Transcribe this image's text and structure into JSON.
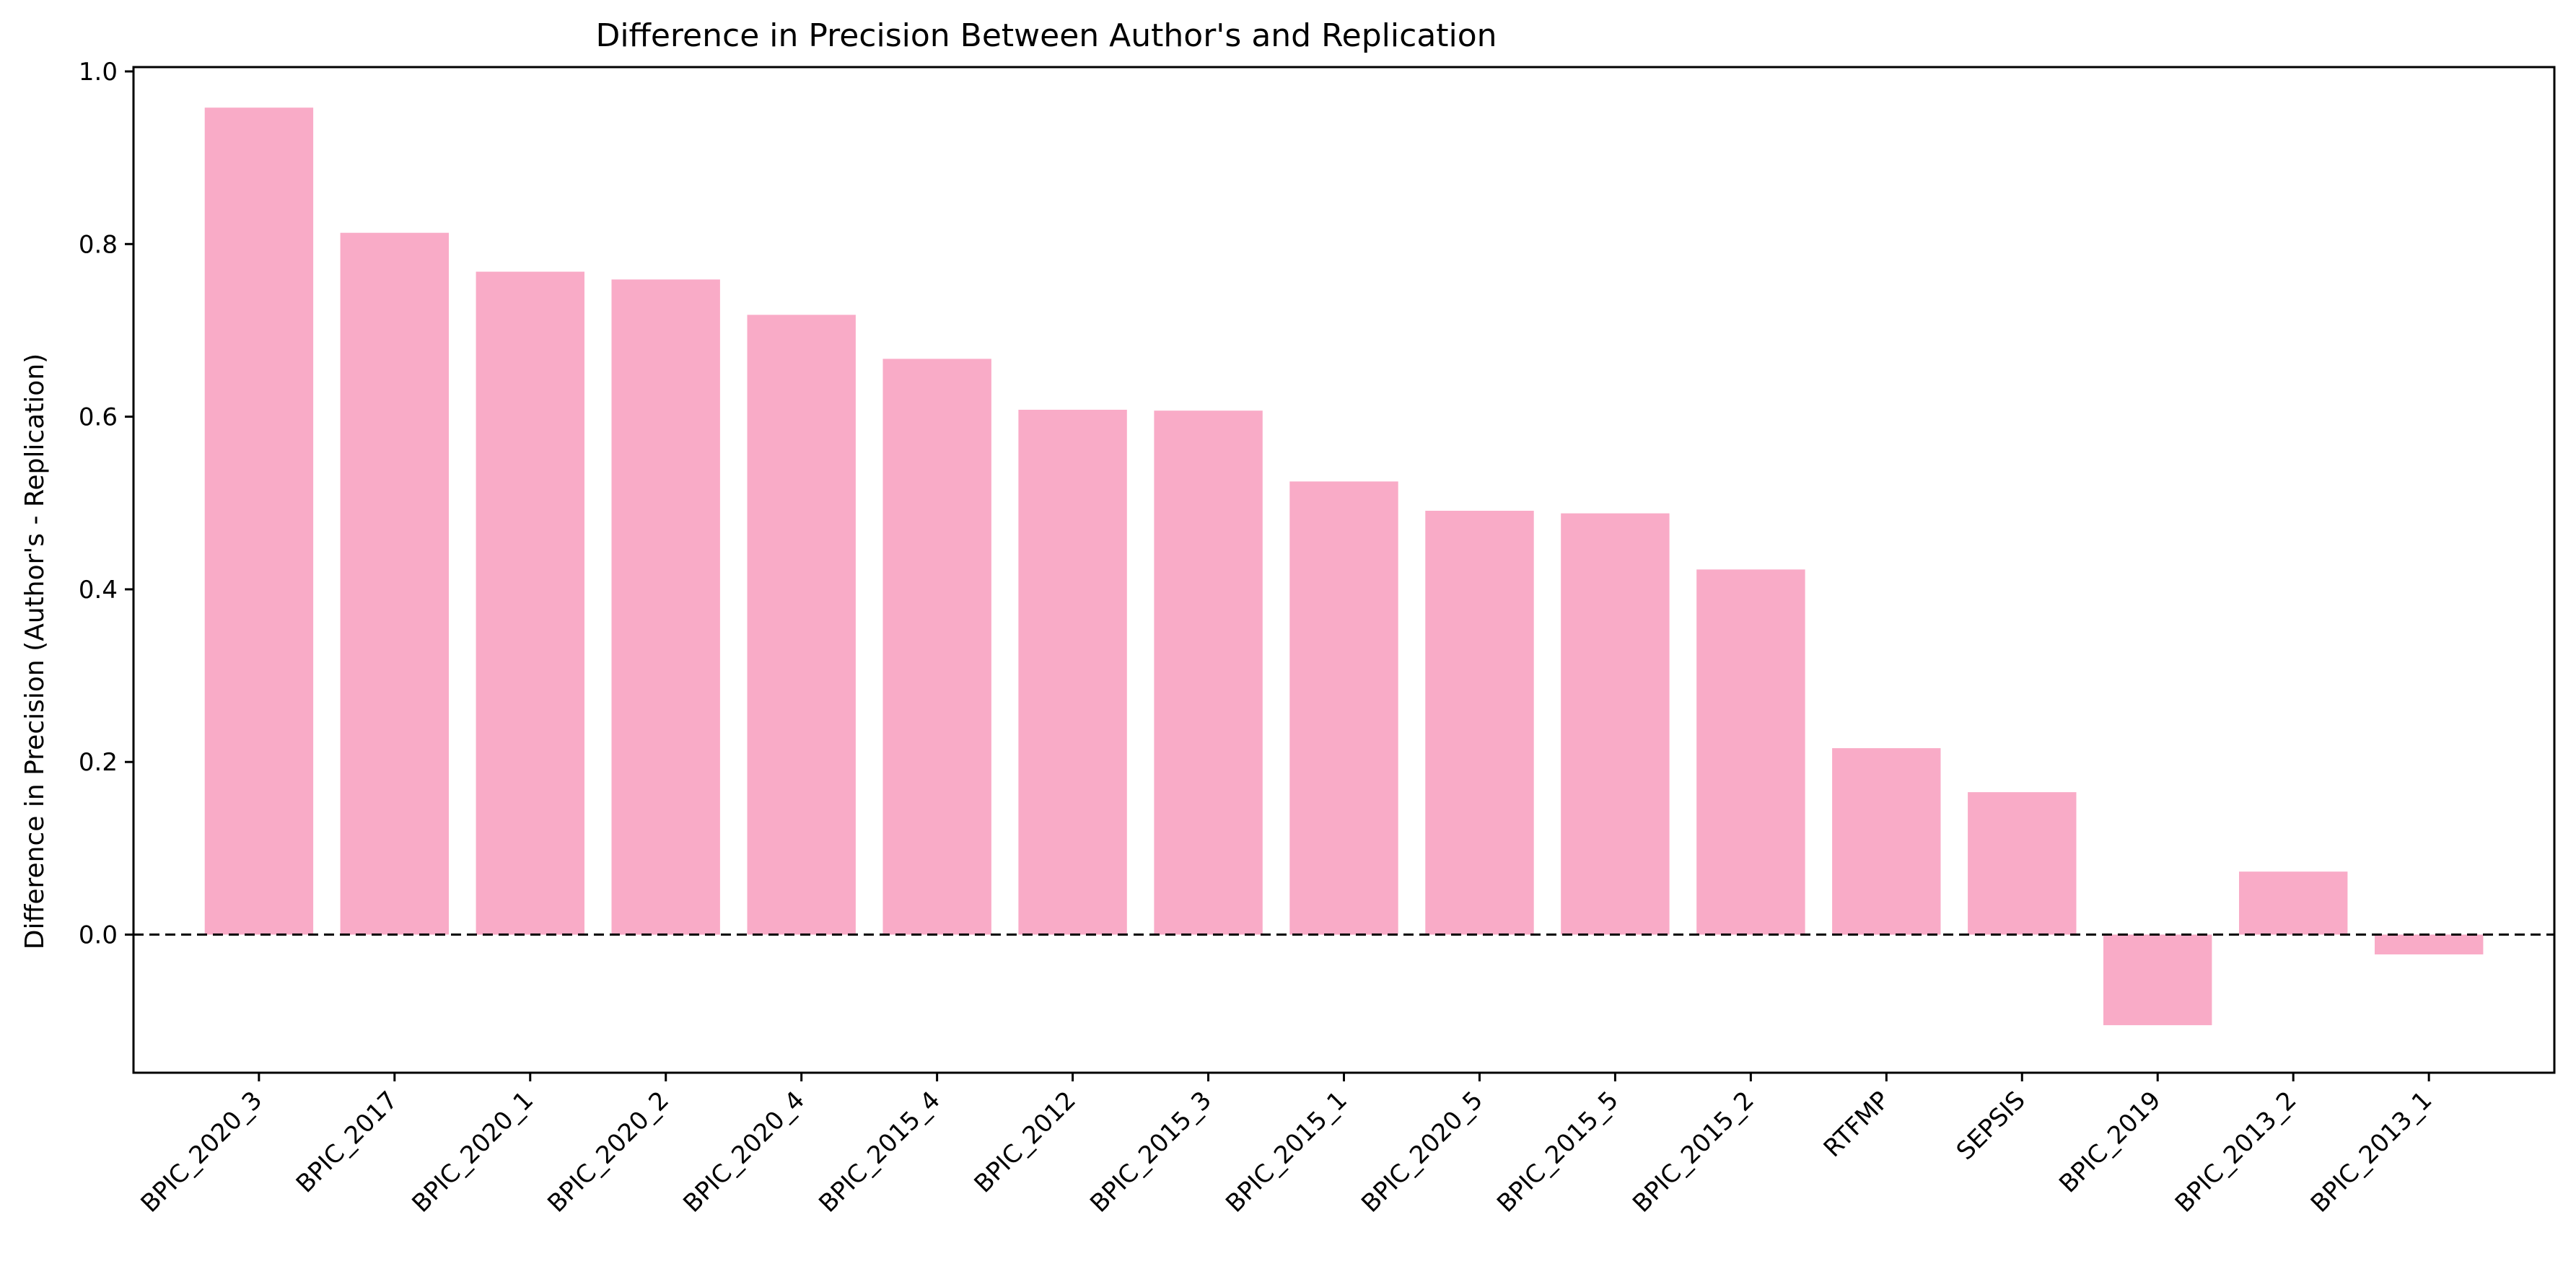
{
  "chart_data": {
    "type": "bar",
    "title": "Difference in Precision Between Author's and Replication",
    "xlabel": "",
    "ylabel": "Difference in Precision (Author's - Replication)",
    "categories": [
      "BPIC_2020_3",
      "BPIC_2017",
      "BPIC_2020_1",
      "BPIC_2020_2",
      "BPIC_2020_4",
      "BPIC_2015_4",
      "BPIC_2012",
      "BPIC_2015_3",
      "BPIC_2015_1",
      "BPIC_2020_5",
      "BPIC_2015_5",
      "BPIC_2015_2",
      "RTFMP",
      "SEPSIS",
      "BPIC_2019",
      "BPIC_2013_2",
      "BPIC_2013_1"
    ],
    "values": [
      0.958,
      0.813,
      0.768,
      0.759,
      0.718,
      0.667,
      0.608,
      0.607,
      0.525,
      0.491,
      0.488,
      0.423,
      0.216,
      0.165,
      -0.105,
      0.073,
      -0.023
    ],
    "ylim": [
      -0.16,
      1.005
    ],
    "yticks": [
      0.0,
      0.2,
      0.4,
      0.6,
      0.8,
      1.0
    ],
    "ytick_labels": [
      "0.0",
      "0.2",
      "0.4",
      "0.6",
      "0.8",
      "1.0"
    ],
    "reference_line": {
      "y": 0,
      "style": "dashed"
    },
    "grid": false,
    "colors": {
      "bar": "#f9abc7",
      "axis": "#000000",
      "reference_line": "#000000"
    }
  }
}
